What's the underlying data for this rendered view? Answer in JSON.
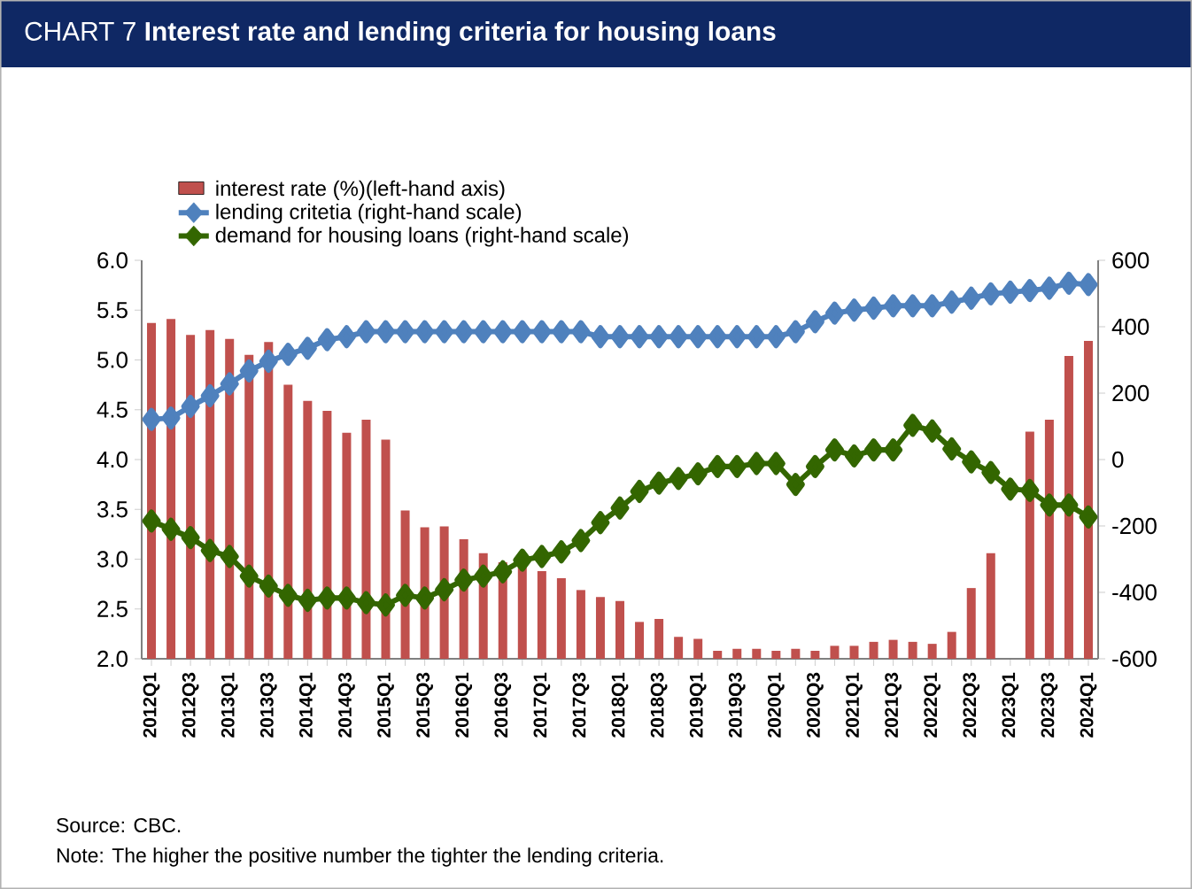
{
  "chart_data": {
    "type": "bar",
    "title": "CHART 7  **Interest rate and lending criteria for housing loans**",
    "categories": [
      "2012Q1",
      null,
      "2012Q3",
      null,
      "2013Q1",
      null,
      "2013Q3",
      null,
      "2014Q1",
      null,
      "2014Q3",
      null,
      "2015Q1",
      null,
      "2015Q3",
      null,
      "2016Q1",
      null,
      "2016Q3",
      null,
      "2017Q1",
      null,
      "2017Q3",
      null,
      "2018Q1",
      null,
      "2018Q3",
      null,
      "2019Q1",
      null,
      "2019Q3",
      null,
      "2020Q1",
      null,
      "2020Q3",
      null,
      "2021Q1",
      null,
      "2021Q3",
      null,
      "2022Q1",
      null,
      "2022Q3",
      null,
      "2023Q1",
      null,
      "2023Q3",
      null,
      "2024Q1"
    ],
    "series": [
      {
        "name": "interest rate (%)(left-hand axis)",
        "color": "#c0504d",
        "values": [
          5.37,
          5.41,
          5.25,
          5.3,
          5.21,
          5.05,
          5.18,
          4.75,
          4.59,
          4.49,
          4.27,
          4.4,
          4.2,
          3.49,
          3.32,
          3.33,
          3.2,
          3.06,
          2.97,
          2.92,
          2.88,
          2.81,
          2.69,
          2.62,
          2.58,
          2.37,
          2.4,
          2.22,
          2.2,
          2.08,
          2.1,
          2.1,
          2.08,
          2.1,
          2.08,
          2.13,
          2.13,
          2.17,
          2.19,
          2.17,
          2.15,
          2.27,
          2.71,
          3.06,
          null,
          4.28,
          4.4,
          5.04,
          5.19
        ]
      },
      {
        "name": "lending critetia (right-hand scale)",
        "type": "line",
        "axis": "y2",
        "color": "#4f81bd",
        "values": [
          121,
          125,
          160,
          192,
          228,
          267,
          296,
          317,
          335,
          361,
          370,
          385,
          385,
          385,
          385,
          385,
          385,
          385,
          385,
          385,
          385,
          385,
          385,
          370,
          370,
          370,
          370,
          370,
          370,
          370,
          370,
          370,
          370,
          385,
          415,
          441,
          450,
          456,
          463,
          463,
          463,
          474,
          486,
          499,
          504,
          509,
          516,
          531,
          527
        ]
      },
      {
        "name": "demand for housing loans (right-hand scale)",
        "type": "line",
        "axis": "y2",
        "color": "#336600",
        "values": [
          -185,
          -210,
          -235,
          -274,
          -292,
          -351,
          -381,
          -409,
          -424,
          -417,
          -417,
          -431,
          -438,
          -409,
          -417,
          -392,
          -363,
          -351,
          -338,
          -303,
          -292,
          -278,
          -244,
          -190,
          -146,
          -96,
          -71,
          -57,
          -43,
          -21,
          -21,
          -12,
          -12,
          -75,
          -21,
          29,
          11,
          29,
          29,
          103,
          86,
          32,
          -7,
          -39,
          -89,
          -93,
          -137,
          -137,
          -173
        ]
      }
    ],
    "ylim": [
      2.0,
      6.0
    ],
    "yticks": [
      {
        "value": 2.0,
        "label": "2.0"
      },
      {
        "value": 2.5,
        "label": "2.5"
      },
      {
        "value": 3.0,
        "label": "3.0"
      },
      {
        "value": 3.5,
        "label": "3.5"
      },
      {
        "value": 4.0,
        "label": "4.0"
      },
      {
        "value": 4.5,
        "label": "4.5"
      },
      {
        "value": 5.0,
        "label": "5.0"
      },
      {
        "value": 5.5,
        "label": "5.5"
      },
      {
        "value": 6.0,
        "label": "6.0"
      }
    ],
    "y2lim": [
      -600,
      600
    ],
    "y2ticks": [
      -600,
      -400,
      -200,
      0,
      200,
      400,
      600
    ],
    "marker": "diamond",
    "legend": "top left",
    "grid": false,
    "annotations": [
      "Source: CBC.",
      "Note: The higher the positive number the tighter the lending criteria."
    ]
  }
}
